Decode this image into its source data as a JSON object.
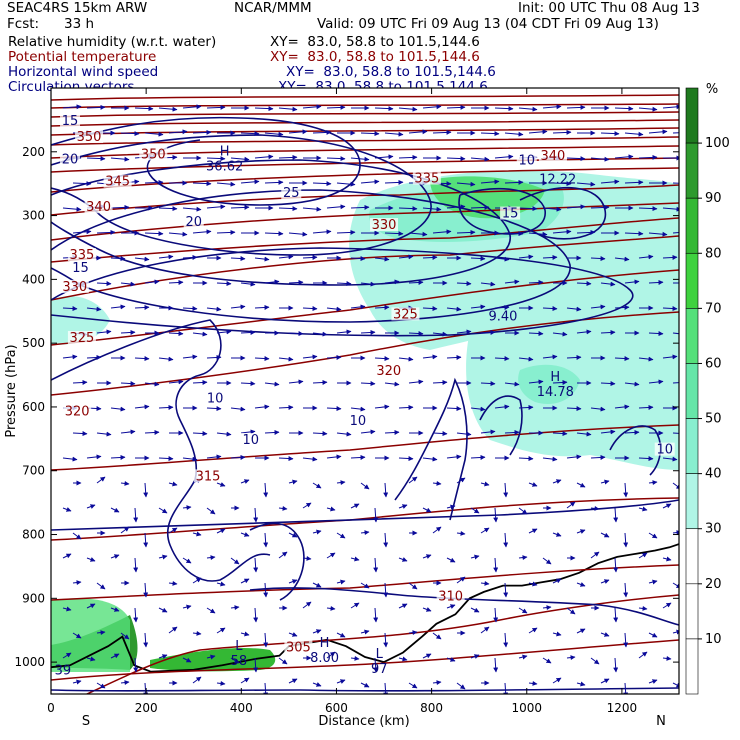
{
  "header": {
    "model": "SEAC4RS 15km ARW",
    "org": "NCAR/MMM",
    "init": "Init: 00 UTC Thu 08 Aug 13",
    "fcst_label": "Fcst:",
    "fcst_value": "33 h",
    "valid": "Valid: 09 UTC Fri 09 Aug 13 (04 CDT Fri 09 Aug 13)",
    "fields": [
      {
        "name": "Relative humidity (w.r.t. water)",
        "xy": "XY=  83.0, 58.8 to 101.5,144.6",
        "color": "#000000"
      },
      {
        "name": "Potential temperature",
        "xy": "XY=  83.0, 58.8 to 101.5,144.6",
        "color": "#8b0000"
      },
      {
        "name": "Horizontal wind speed",
        "xy": "XY=  83.0, 58.8 to 101.5,144.6",
        "color": "#000080"
      },
      {
        "name": "Circulation vectors",
        "xy": "XY=  83.0, 58.8 to 101.5,144.6",
        "color": "#000080"
      }
    ]
  },
  "colorbar": {
    "unit": "%",
    "ticks": [
      "100",
      "90",
      "80",
      "70",
      "60",
      "50",
      "40",
      "30",
      "20",
      "10"
    ],
    "colors": [
      "#1f7a1f",
      "#2e9a2e",
      "#34b834",
      "#3fd23f",
      "#55e07a",
      "#66e6a8",
      "#88efcf",
      "#b0f5e6",
      "#ffffff",
      "#ffffff",
      "#ffffff"
    ]
  },
  "colors": {
    "theta": "#8b0000",
    "wind": "#0a0a7a",
    "terrain": "#000000",
    "vectors": "#0a0a9a"
  },
  "chart_data": {
    "type": "cross-section",
    "xlabel": "Distance (km)",
    "ylabel": "Pressure (hPa)",
    "xlim": [
      0,
      1320
    ],
    "ylim": [
      1050,
      100
    ],
    "xticks": [
      0,
      200,
      400,
      600,
      800,
      1000,
      1200
    ],
    "yticks": [
      200,
      300,
      400,
      500,
      600,
      700,
      800,
      900,
      1000
    ],
    "left_end": "S",
    "right_end": "N",
    "theta_contours": [
      {
        "label": "350",
        "km": 80,
        "p": 180
      },
      {
        "label": "350",
        "km": 215,
        "p": 207
      },
      {
        "label": "345",
        "km": 140,
        "p": 250
      },
      {
        "label": "340",
        "km": 100,
        "p": 290
      },
      {
        "label": "335",
        "km": 790,
        "p": 245
      },
      {
        "label": "340",
        "km": 1055,
        "p": 210
      },
      {
        "label": "335",
        "km": 65,
        "p": 365
      },
      {
        "label": "330",
        "km": 50,
        "p": 415
      },
      {
        "label": "330",
        "km": 700,
        "p": 318
      },
      {
        "label": "325",
        "km": 65,
        "p": 495
      },
      {
        "label": "325",
        "km": 745,
        "p": 458
      },
      {
        "label": "320",
        "km": 55,
        "p": 610
      },
      {
        "label": "320",
        "km": 710,
        "p": 547
      },
      {
        "label": "315",
        "km": 330,
        "p": 712
      },
      {
        "label": "310",
        "km": 840,
        "p": 900
      },
      {
        "label": "305",
        "km": 520,
        "p": 980
      }
    ],
    "wind_contours": [
      {
        "label": "15",
        "km": 40,
        "p": 155
      },
      {
        "label": "20",
        "km": 40,
        "p": 215
      },
      {
        "label": "25",
        "km": 505,
        "p": 268
      },
      {
        "label": "20",
        "km": 300,
        "p": 313
      },
      {
        "label": "15",
        "km": 62,
        "p": 385
      },
      {
        "label": "15",
        "km": 965,
        "p": 300
      },
      {
        "label": "10",
        "km": 1000,
        "p": 217
      },
      {
        "label": "10",
        "km": 345,
        "p": 590
      },
      {
        "label": "10",
        "km": 420,
        "p": 655
      },
      {
        "label": "10",
        "km": 645,
        "p": 625
      },
      {
        "label": "10",
        "km": 1290,
        "p": 670
      }
    ],
    "extrema": [
      {
        "label": "H",
        "value": "36.62",
        "km": 365,
        "p": 225
      },
      {
        "label": "H",
        "value": "14.78",
        "km": 1060,
        "p": 578
      },
      {
        "label": "",
        "value": "12.22",
        "km": 1065,
        "p": 245
      },
      {
        "label": "",
        "value": "9.40",
        "km": 950,
        "p": 460
      },
      {
        "label": "H",
        "value": "8.00",
        "km": 575,
        "p": 995
      },
      {
        "label": "L",
        "value": "97",
        "km": 690,
        "p": 1012
      },
      {
        "label": "L",
        "value": "58",
        "km": 395,
        "p": 1000
      },
      {
        "label": "",
        "value": "39",
        "km": 25,
        "p": 1015
      }
    ],
    "terrain_hpa": [
      [
        0,
        1008
      ],
      [
        40,
        1005
      ],
      [
        80,
        990
      ],
      [
        120,
        975
      ],
      [
        150,
        960
      ],
      [
        175,
        1005
      ],
      [
        210,
        1015
      ],
      [
        300,
        1012
      ],
      [
        360,
        1005
      ],
      [
        430,
        995
      ],
      [
        480,
        990
      ],
      [
        500,
        975
      ],
      [
        540,
        970
      ],
      [
        580,
        965
      ],
      [
        620,
        975
      ],
      [
        660,
        992
      ],
      [
        700,
        1000
      ],
      [
        740,
        985
      ],
      [
        780,
        960
      ],
      [
        810,
        940
      ],
      [
        850,
        925
      ],
      [
        880,
        900
      ],
      [
        910,
        890
      ],
      [
        950,
        880
      ],
      [
        990,
        880
      ],
      [
        1030,
        875
      ],
      [
        1070,
        870
      ],
      [
        1110,
        860
      ],
      [
        1150,
        845
      ],
      [
        1190,
        835
      ],
      [
        1230,
        830
      ],
      [
        1270,
        825
      ],
      [
        1300,
        820
      ],
      [
        1320,
        815
      ]
    ]
  }
}
